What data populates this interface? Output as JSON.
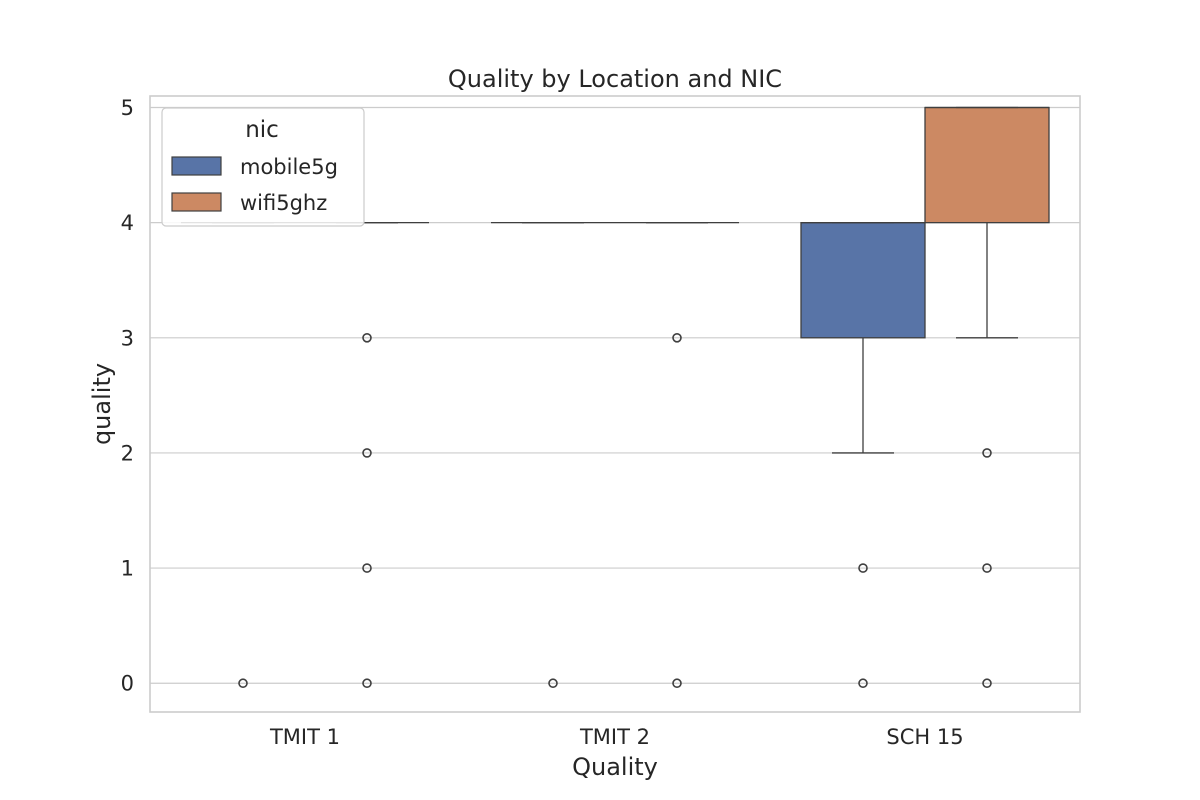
{
  "chart_data": {
    "type": "box",
    "title": "Quality by Location and NIC",
    "xlabel": "Quality",
    "ylabel": "quality",
    "categories": [
      "TMIT 1",
      "TMIT 2",
      "SCH 15"
    ],
    "ylim": [
      -0.25,
      5.1
    ],
    "yticks": [
      "0",
      "1",
      "2",
      "3",
      "4",
      "5"
    ],
    "grid": true,
    "legend": {
      "title": "nic",
      "position": "top-left",
      "entries": [
        "mobile5g",
        "wifi5ghz"
      ]
    },
    "series": [
      {
        "name": "mobile5g",
        "color": "#5874a7",
        "boxes": [
          {
            "category": "TMIT 1",
            "whisker_low": 4,
            "q1": 4,
            "median": 4,
            "q3": 4,
            "whisker_high": 4,
            "outliers": [
              0
            ]
          },
          {
            "category": "TMIT 2",
            "whisker_low": 4,
            "q1": 4,
            "median": 4,
            "q3": 4,
            "whisker_high": 4,
            "outliers": [
              0
            ]
          },
          {
            "category": "SCH 15",
            "whisker_low": 2,
            "q1": 3,
            "median": 4,
            "q3": 4,
            "whisker_high": 4,
            "outliers": [
              1,
              0
            ]
          }
        ]
      },
      {
        "name": "wifi5ghz",
        "color": "#cc8963",
        "boxes": [
          {
            "category": "TMIT 1",
            "whisker_low": 4,
            "q1": 4,
            "median": 4,
            "q3": 4,
            "whisker_high": 4,
            "outliers": [
              3,
              2,
              1,
              0
            ]
          },
          {
            "category": "TMIT 2",
            "whisker_low": 4,
            "q1": 4,
            "median": 4,
            "q3": 4,
            "whisker_high": 4,
            "outliers": [
              3,
              0
            ]
          },
          {
            "category": "SCH 15",
            "whisker_low": 3,
            "q1": 4,
            "median": 5,
            "q3": 5,
            "whisker_high": 5,
            "outliers": [
              2,
              1,
              0
            ]
          }
        ]
      }
    ]
  }
}
